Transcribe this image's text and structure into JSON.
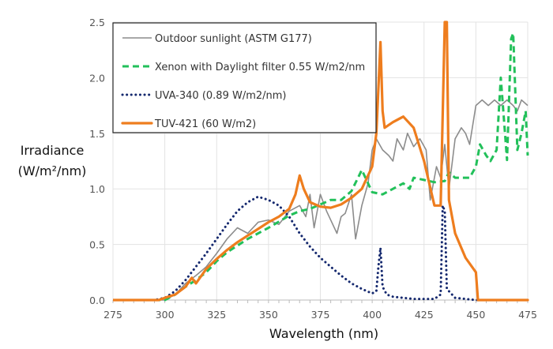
{
  "chart_data": {
    "type": "line",
    "xlabel": "Wavelength (nm)",
    "ylabel_line1": "Irradiance",
    "ylabel_line2": "(W/m²/nm)",
    "xlim": [
      275,
      475
    ],
    "ylim": [
      0,
      2.5
    ],
    "xticks": [
      "275",
      "300",
      "325",
      "350",
      "375",
      "400",
      "425",
      "450",
      "475"
    ],
    "yticks": [
      "0.0",
      "0.5",
      "1.0",
      "1.5",
      "2.0",
      "2.5"
    ],
    "grid": true,
    "legend_placement": "top-left",
    "series": [
      {
        "name": "Outdoor sunlight (ASTM G177)",
        "color": "#8c8c8c",
        "style": "solid",
        "x": [
          275,
          298,
          300,
          305,
          310,
          315,
          320,
          325,
          330,
          335,
          340,
          345,
          350,
          355,
          360,
          365,
          368,
          370,
          372,
          375,
          378,
          380,
          383,
          385,
          387,
          390,
          392,
          395,
          398,
          400,
          402,
          405,
          408,
          410,
          412,
          415,
          417,
          420,
          423,
          426,
          428,
          431,
          433,
          435,
          437,
          440,
          443,
          445,
          447,
          450,
          453,
          456,
          459,
          462,
          465,
          468,
          470,
          472,
          475
        ],
        "y": [
          0,
          0,
          0,
          0.05,
          0.15,
          0.22,
          0.3,
          0.42,
          0.55,
          0.65,
          0.6,
          0.7,
          0.72,
          0.68,
          0.8,
          0.85,
          0.75,
          0.95,
          0.65,
          0.95,
          0.8,
          0.72,
          0.6,
          0.75,
          0.78,
          0.95,
          0.55,
          0.85,
          1.05,
          1.35,
          1.45,
          1.35,
          1.3,
          1.25,
          1.45,
          1.35,
          1.5,
          1.38,
          1.45,
          1.35,
          0.9,
          1.2,
          1.1,
          1.4,
          1.0,
          1.45,
          1.55,
          1.5,
          1.4,
          1.75,
          1.8,
          1.75,
          1.8,
          1.75,
          1.8,
          1.75,
          1.7,
          1.8,
          1.75
        ]
      },
      {
        "name": "Xenon with Daylight filter 0.55 W/m2/nm",
        "color": "#22c05a",
        "style": "dashed",
        "x": [
          275,
          300,
          305,
          310,
          315,
          320,
          325,
          330,
          340,
          350,
          360,
          365,
          370,
          375,
          380,
          385,
          390,
          395,
          398,
          400,
          405,
          410,
          415,
          418,
          420,
          425,
          430,
          435,
          437,
          440,
          445,
          447,
          450,
          452,
          455,
          457,
          460,
          462,
          465,
          467,
          468,
          470,
          472,
          474,
          475
        ],
        "y": [
          0,
          0,
          0.05,
          0.12,
          0.18,
          0.25,
          0.35,
          0.43,
          0.55,
          0.65,
          0.76,
          0.8,
          0.82,
          0.86,
          0.9,
          0.9,
          0.98,
          1.17,
          1.05,
          0.97,
          0.95,
          1.0,
          1.05,
          1.0,
          1.1,
          1.08,
          1.06,
          1.07,
          1.15,
          1.1,
          1.1,
          1.1,
          1.2,
          1.4,
          1.3,
          1.25,
          1.35,
          2.0,
          1.26,
          2.35,
          2.4,
          1.35,
          1.5,
          1.7,
          1.3
        ]
      },
      {
        "name": "UVA-340 (0.89 W/m2/nm)",
        "color": "#14286e",
        "style": "dotted",
        "x": [
          275,
          295,
          300,
          305,
          310,
          315,
          320,
          325,
          330,
          335,
          340,
          345,
          350,
          355,
          360,
          365,
          370,
          375,
          380,
          385,
          390,
          395,
          400,
          402,
          403,
          404,
          405,
          407,
          410,
          420,
          430,
          433,
          434,
          435,
          436,
          440,
          450,
          475
        ],
        "y": [
          0,
          0,
          0.02,
          0.08,
          0.18,
          0.3,
          0.42,
          0.55,
          0.68,
          0.8,
          0.88,
          0.93,
          0.9,
          0.85,
          0.75,
          0.6,
          0.48,
          0.38,
          0.3,
          0.22,
          0.15,
          0.1,
          0.06,
          0.08,
          0.3,
          0.47,
          0.12,
          0.05,
          0.03,
          0.01,
          0.01,
          0.05,
          0.85,
          0.8,
          0.1,
          0.02,
          0,
          0
        ]
      },
      {
        "name": "TUV-421 (60 W/m2)",
        "color": "#ee7d1e",
        "style": "solid-thick",
        "x": [
          275,
          297,
          300,
          305,
          310,
          313,
          315,
          320,
          325,
          330,
          335,
          340,
          345,
          350,
          355,
          360,
          363,
          365,
          367,
          370,
          375,
          380,
          385,
          390,
          395,
          400,
          402,
          404,
          405,
          406,
          410,
          415,
          420,
          425,
          430,
          433,
          435,
          436,
          437,
          440,
          445,
          450,
          451,
          475
        ],
        "y": [
          0,
          0,
          0.02,
          0.05,
          0.12,
          0.2,
          0.15,
          0.28,
          0.37,
          0.45,
          0.52,
          0.58,
          0.64,
          0.7,
          0.75,
          0.82,
          0.95,
          1.12,
          1.0,
          0.88,
          0.84,
          0.83,
          0.86,
          0.92,
          1.0,
          1.2,
          1.5,
          2.32,
          1.7,
          1.55,
          1.6,
          1.65,
          1.55,
          1.25,
          0.85,
          0.85,
          2.5,
          2.5,
          0.9,
          0.6,
          0.38,
          0.25,
          0,
          0
        ]
      }
    ]
  }
}
